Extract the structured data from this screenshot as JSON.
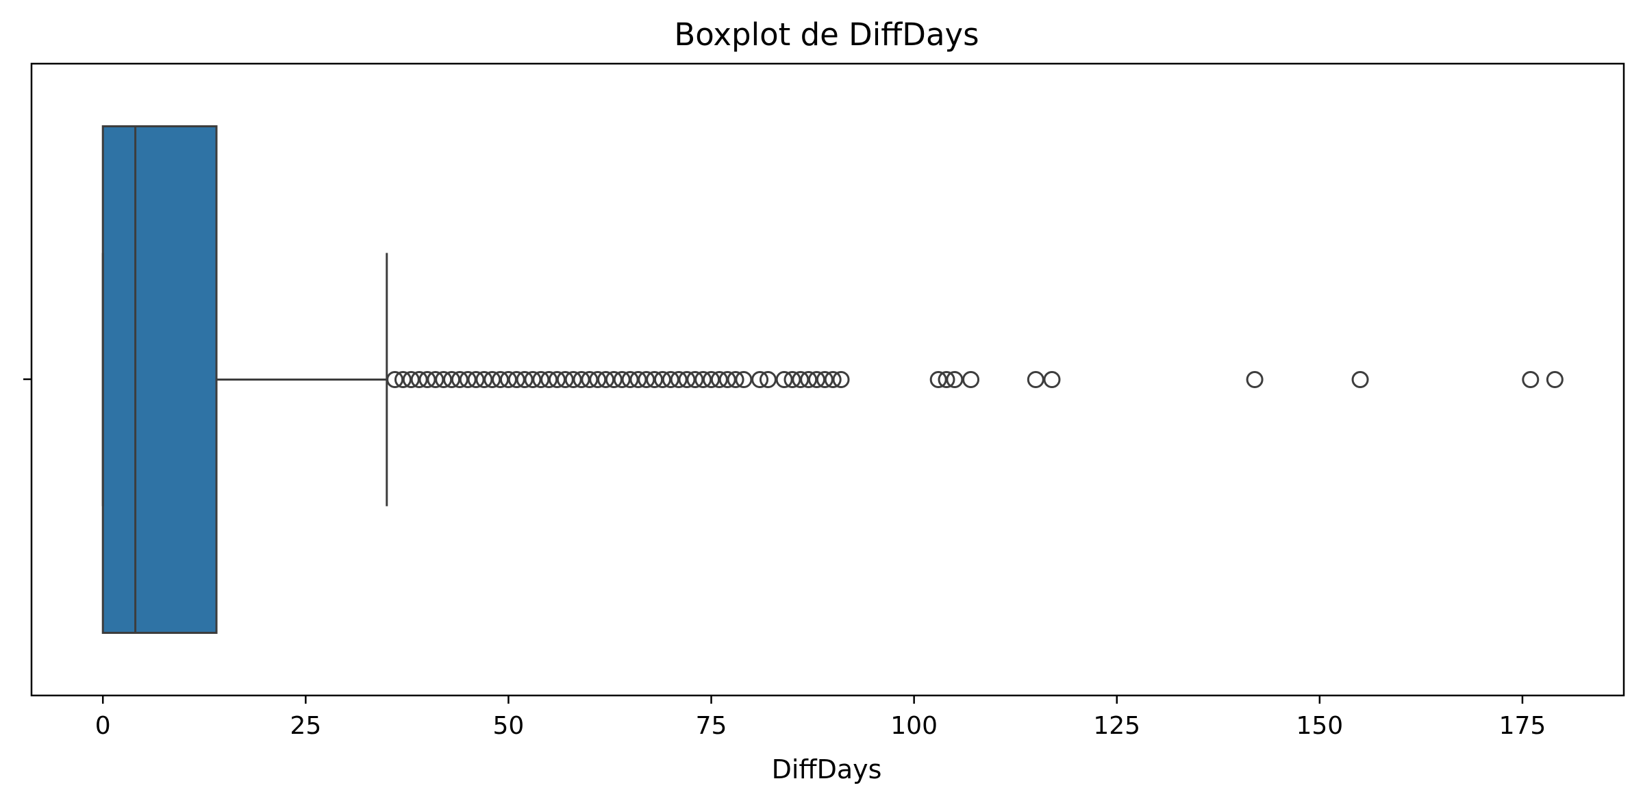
{
  "chart_data": {
    "type": "boxplot",
    "title": "Boxplot de DiffDays",
    "xlabel": "DiffDays",
    "ylabel": "",
    "xlim": [
      -8.8,
      187.5
    ],
    "xticks": [
      0,
      25,
      50,
      75,
      100,
      125,
      150,
      175
    ],
    "grid": false,
    "orientation": "horizontal",
    "colors": {
      "box_fill": "#2f73a5",
      "line": "#3d3d3d"
    },
    "box": {
      "min_whisker": 0,
      "q1": 0,
      "median": 4,
      "q3": 14,
      "max_whisker": 35
    },
    "outliers": [
      36,
      37,
      38,
      39,
      40,
      41,
      42,
      43,
      44,
      45,
      46,
      47,
      48,
      49,
      50,
      51,
      52,
      53,
      54,
      55,
      56,
      57,
      58,
      59,
      60,
      61,
      62,
      63,
      64,
      65,
      66,
      67,
      68,
      69,
      70,
      71,
      72,
      73,
      74,
      75,
      76,
      77,
      78,
      79,
      81,
      82,
      84,
      85,
      86,
      87,
      88,
      89,
      90,
      91,
      103,
      104,
      105,
      107,
      115,
      117,
      142,
      155,
      176,
      179
    ]
  }
}
